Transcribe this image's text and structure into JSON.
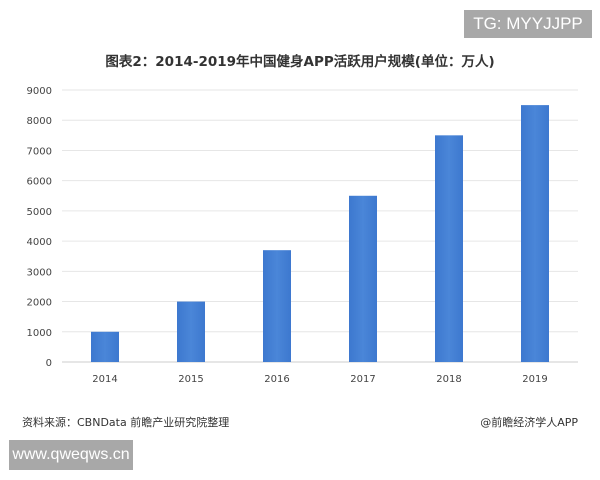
{
  "watermark_top": "TG: MYYJJPP",
  "watermark_bottom": "www.qweqws.cn",
  "source": "资料来源：CBNData 前瞻产业研究院整理",
  "credit": "@前瞻经济学人APP",
  "chart_data": {
    "type": "bar",
    "title": "图表2：2014-2019年中国健身APP活跃用户规模(单位：万人)",
    "categories": [
      "2014",
      "2015",
      "2016",
      "2017",
      "2018",
      "2019"
    ],
    "values": [
      1000,
      2000,
      3700,
      5500,
      7500,
      8500
    ],
    "ylim": [
      0,
      9000
    ],
    "yticks": [
      0,
      1000,
      2000,
      3000,
      4000,
      5000,
      6000,
      7000,
      8000,
      9000
    ],
    "grid": true,
    "bar_color": "#4a86d8"
  }
}
